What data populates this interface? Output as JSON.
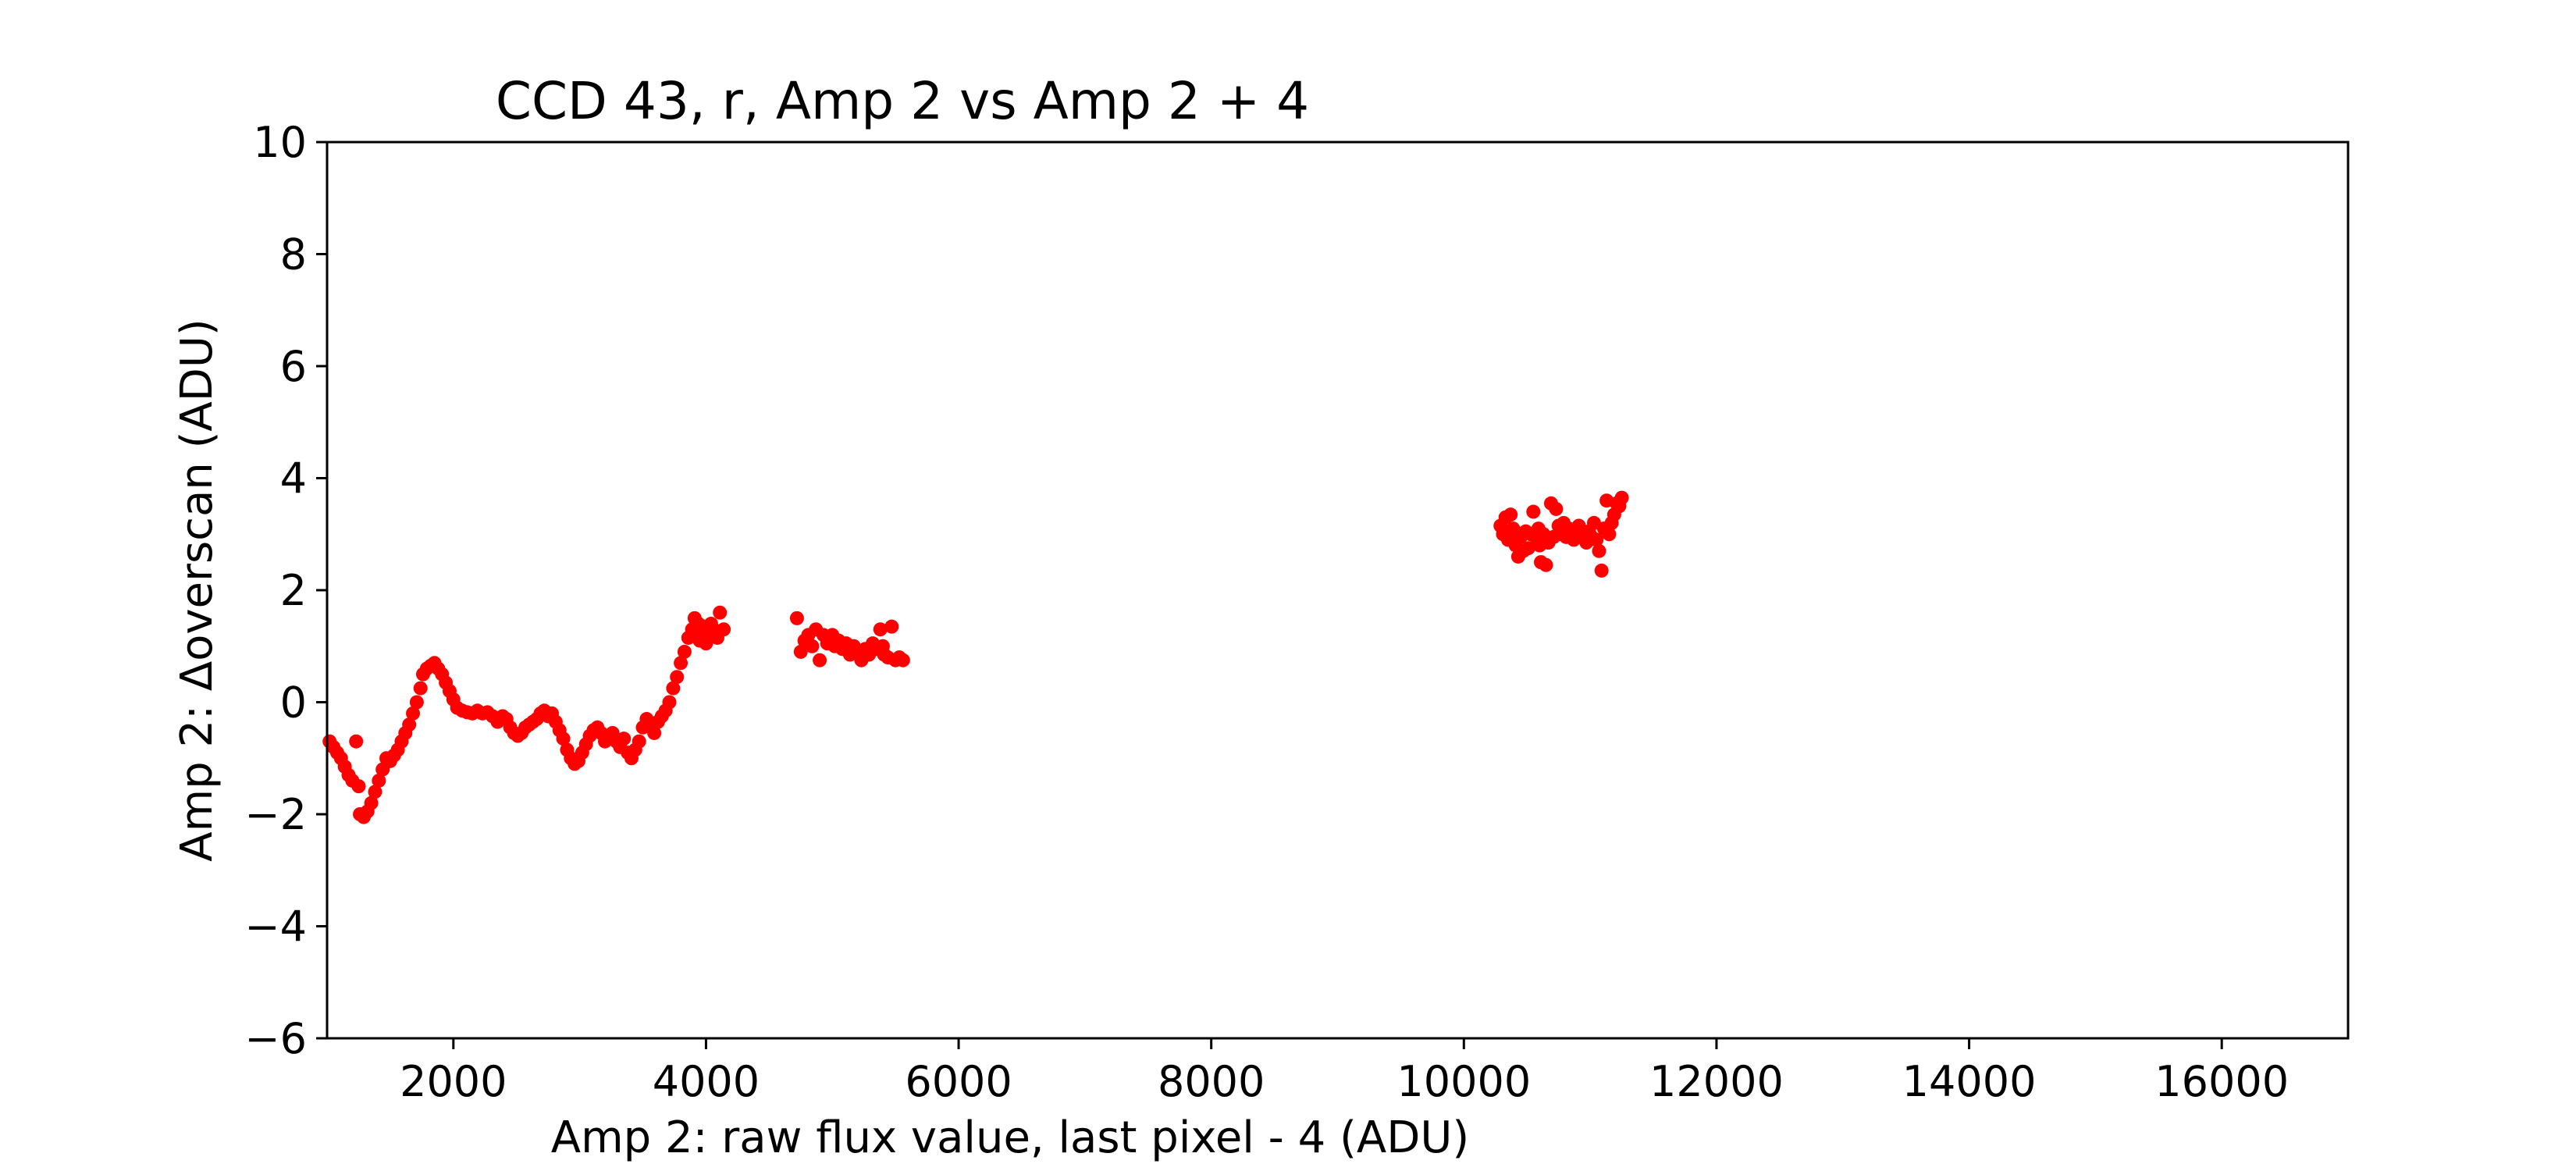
{
  "chart_data": {
    "type": "scatter",
    "title": "CCD 43, r, Amp 2 vs Amp 2 + 4",
    "xlabel": "Amp 2: raw flux value, last pixel - 4 (ADU)",
    "ylabel": "Amp 2: Δoverscan (ADU)",
    "xlim": [
      1000,
      17000
    ],
    "ylim": [
      -6,
      10
    ],
    "x_ticks": [
      2000,
      4000,
      6000,
      8000,
      10000,
      12000,
      14000,
      16000
    ],
    "x_tick_labels": [
      "2000",
      "4000",
      "6000",
      "8000",
      "10000",
      "12000",
      "14000",
      "16000"
    ],
    "y_ticks": [
      -6,
      -4,
      -2,
      0,
      2,
      4,
      6,
      8,
      10
    ],
    "y_tick_labels": [
      "−6",
      "−4",
      "−2",
      "0",
      "2",
      "4",
      "6",
      "8",
      "10"
    ],
    "grid": false,
    "marker_color": "#ff0000",
    "series": [
      {
        "points": [
          [
            1020,
            -0.7
          ],
          [
            1050,
            -0.8
          ],
          [
            1080,
            -0.9
          ],
          [
            1110,
            -1.0
          ],
          [
            1140,
            -1.15
          ],
          [
            1170,
            -1.3
          ],
          [
            1200,
            -1.4
          ],
          [
            1230,
            -0.7
          ],
          [
            1250,
            -1.5
          ],
          [
            1260,
            -2.0
          ],
          [
            1290,
            -2.05
          ],
          [
            1320,
            -1.95
          ],
          [
            1350,
            -1.8
          ],
          [
            1380,
            -1.6
          ],
          [
            1410,
            -1.4
          ],
          [
            1440,
            -1.2
          ],
          [
            1470,
            -1.0
          ],
          [
            1500,
            -1.05
          ],
          [
            1530,
            -0.95
          ],
          [
            1560,
            -0.85
          ],
          [
            1590,
            -0.7
          ],
          [
            1620,
            -0.55
          ],
          [
            1650,
            -0.4
          ],
          [
            1680,
            -0.2
          ],
          [
            1710,
            0.0
          ],
          [
            1740,
            0.25
          ],
          [
            1760,
            0.5
          ],
          [
            1790,
            0.6
          ],
          [
            1820,
            0.65
          ],
          [
            1850,
            0.7
          ],
          [
            1880,
            0.6
          ],
          [
            1910,
            0.5
          ],
          [
            1940,
            0.35
          ],
          [
            1970,
            0.2
          ],
          [
            2000,
            0.05
          ],
          [
            2030,
            -0.1
          ],
          [
            2070,
            -0.15
          ],
          [
            2110,
            -0.18
          ],
          [
            2150,
            -0.2
          ],
          [
            2190,
            -0.15
          ],
          [
            2230,
            -0.2
          ],
          [
            2270,
            -0.18
          ],
          [
            2310,
            -0.25
          ],
          [
            2350,
            -0.35
          ],
          [
            2390,
            -0.25
          ],
          [
            2420,
            -0.3
          ],
          [
            2450,
            -0.45
          ],
          [
            2480,
            -0.55
          ],
          [
            2510,
            -0.6
          ],
          [
            2540,
            -0.55
          ],
          [
            2570,
            -0.45
          ],
          [
            2600,
            -0.4
          ],
          [
            2630,
            -0.35
          ],
          [
            2660,
            -0.3
          ],
          [
            2690,
            -0.2
          ],
          [
            2720,
            -0.15
          ],
          [
            2750,
            -0.25
          ],
          [
            2780,
            -0.2
          ],
          [
            2810,
            -0.35
          ],
          [
            2840,
            -0.5
          ],
          [
            2870,
            -0.65
          ],
          [
            2900,
            -0.85
          ],
          [
            2930,
            -1.0
          ],
          [
            2960,
            -1.1
          ],
          [
            2990,
            -1.05
          ],
          [
            3020,
            -0.9
          ],
          [
            3050,
            -0.75
          ],
          [
            3080,
            -0.6
          ],
          [
            3110,
            -0.5
          ],
          [
            3140,
            -0.45
          ],
          [
            3170,
            -0.55
          ],
          [
            3200,
            -0.7
          ],
          [
            3230,
            -0.6
          ],
          [
            3260,
            -0.55
          ],
          [
            3290,
            -0.7
          ],
          [
            3320,
            -0.8
          ],
          [
            3350,
            -0.65
          ],
          [
            3380,
            -0.9
          ],
          [
            3410,
            -1.0
          ],
          [
            3440,
            -0.85
          ],
          [
            3470,
            -0.7
          ],
          [
            3500,
            -0.45
          ],
          [
            3530,
            -0.3
          ],
          [
            3560,
            -0.4
          ],
          [
            3590,
            -0.55
          ],
          [
            3620,
            -0.35
          ],
          [
            3650,
            -0.25
          ],
          [
            3680,
            -0.15
          ],
          [
            3710,
            0.0
          ],
          [
            3740,
            0.25
          ],
          [
            3770,
            0.45
          ],
          [
            3800,
            0.7
          ],
          [
            3830,
            0.9
          ],
          [
            3860,
            1.15
          ],
          [
            3890,
            1.3
          ],
          [
            3910,
            1.5
          ],
          [
            3940,
            1.4
          ],
          [
            3960,
            1.25
          ],
          [
            3990,
            1.35
          ],
          [
            4010,
            1.2
          ],
          [
            4040,
            1.4
          ],
          [
            4060,
            1.3
          ],
          [
            4090,
            1.15
          ],
          [
            4110,
            1.6
          ],
          [
            4140,
            1.3
          ],
          [
            4000,
            1.05
          ],
          [
            3950,
            1.1
          ],
          [
            4080,
            1.25
          ],
          [
            4720,
            1.5
          ],
          [
            4750,
            0.9
          ],
          [
            4780,
            1.1
          ],
          [
            4810,
            1.2
          ],
          [
            4840,
            1.0
          ],
          [
            4870,
            1.3
          ],
          [
            4900,
            0.75
          ],
          [
            4930,
            1.2
          ],
          [
            4960,
            1.05
          ],
          [
            4990,
            1.15
          ],
          [
            5020,
            1.0
          ],
          [
            5050,
            1.1
          ],
          [
            5080,
            0.95
          ],
          [
            5110,
            1.05
          ],
          [
            5140,
            0.85
          ],
          [
            5170,
            1.0
          ],
          [
            5200,
            0.9
          ],
          [
            5230,
            0.75
          ],
          [
            5260,
            0.95
          ],
          [
            5290,
            0.85
          ],
          [
            5320,
            1.05
          ],
          [
            5350,
            0.95
          ],
          [
            5380,
            1.3
          ],
          [
            5410,
            0.85
          ],
          [
            5440,
            0.8
          ],
          [
            5470,
            1.35
          ],
          [
            5500,
            0.75
          ],
          [
            5530,
            0.8
          ],
          [
            5560,
            0.75
          ],
          [
            5000,
            1.2
          ],
          [
            5150,
            1.0
          ],
          [
            5400,
            1.0
          ],
          [
            10290,
            3.15
          ],
          [
            10310,
            3.0
          ],
          [
            10330,
            3.3
          ],
          [
            10350,
            2.9
          ],
          [
            10370,
            3.35
          ],
          [
            10390,
            3.1
          ],
          [
            10410,
            2.8
          ],
          [
            10430,
            2.6
          ],
          [
            10450,
            2.95
          ],
          [
            10470,
            2.7
          ],
          [
            10490,
            3.05
          ],
          [
            10510,
            2.75
          ],
          [
            10530,
            3.0
          ],
          [
            10550,
            3.4
          ],
          [
            10570,
            2.95
          ],
          [
            10590,
            3.1
          ],
          [
            10610,
            2.5
          ],
          [
            10630,
            3.0
          ],
          [
            10650,
            2.45
          ],
          [
            10670,
            2.85
          ],
          [
            10690,
            3.55
          ],
          [
            10710,
            2.95
          ],
          [
            10730,
            3.45
          ],
          [
            10750,
            3.15
          ],
          [
            10770,
            3.0
          ],
          [
            10790,
            3.2
          ],
          [
            10810,
            2.95
          ],
          [
            10830,
            3.1
          ],
          [
            10850,
            3.05
          ],
          [
            10870,
            2.9
          ],
          [
            10890,
            3.0
          ],
          [
            10910,
            3.15
          ],
          [
            10930,
            2.95
          ],
          [
            10950,
            3.0
          ],
          [
            10970,
            2.85
          ],
          [
            10990,
            3.05
          ],
          [
            11010,
            2.95
          ],
          [
            11030,
            3.2
          ],
          [
            11050,
            2.9
          ],
          [
            11070,
            2.7
          ],
          [
            11090,
            2.35
          ],
          [
            11110,
            3.1
          ],
          [
            11130,
            3.6
          ],
          [
            11150,
            3.0
          ],
          [
            11170,
            3.2
          ],
          [
            11190,
            3.35
          ],
          [
            11210,
            3.55
          ],
          [
            11230,
            3.5
          ],
          [
            11250,
            3.65
          ],
          [
            10400,
            3.05
          ],
          [
            10600,
            2.8
          ],
          [
            10800,
            3.1
          ]
        ]
      }
    ]
  }
}
